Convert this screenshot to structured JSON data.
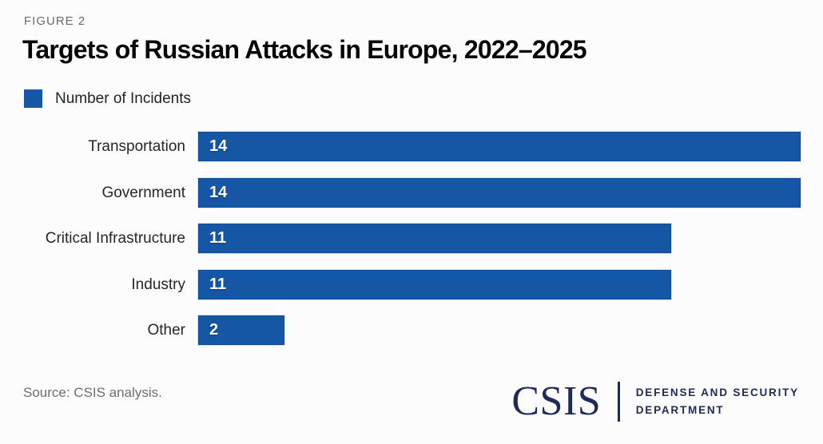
{
  "figure_label": "FIGURE 2",
  "title": "Targets of Russian Attacks in Europe, 2022–2025",
  "legend": {
    "label": "Number of Incidents",
    "swatch_color": "#1557A5"
  },
  "chart_data": {
    "type": "bar",
    "orientation": "horizontal",
    "title": "Targets of Russian Attacks in Europe, 2022–2025",
    "series_label": "Number of Incidents",
    "categories": [
      "Transportation",
      "Government",
      "Critical Infrastructure",
      "Industry",
      "Other"
    ],
    "values": [
      14,
      14,
      11,
      11,
      2
    ],
    "xlim": [
      0,
      14
    ],
    "bar_color": "#1557A5",
    "value_labels_shown": true,
    "grid": false,
    "legend_position": "top-left"
  },
  "footer": {
    "source": "Source: CSIS analysis.",
    "logo": {
      "wordmark": "CSIS",
      "department_line1": "DEFENSE AND SECURITY",
      "department_line2": "DEPARTMENT"
    }
  },
  "colors": {
    "bar": "#1557A5",
    "logo_navy": "#1F2A56",
    "figure_label_gray": "#6B6B6B",
    "source_gray": "#6E6E6E",
    "background": "#fcfcfc"
  }
}
